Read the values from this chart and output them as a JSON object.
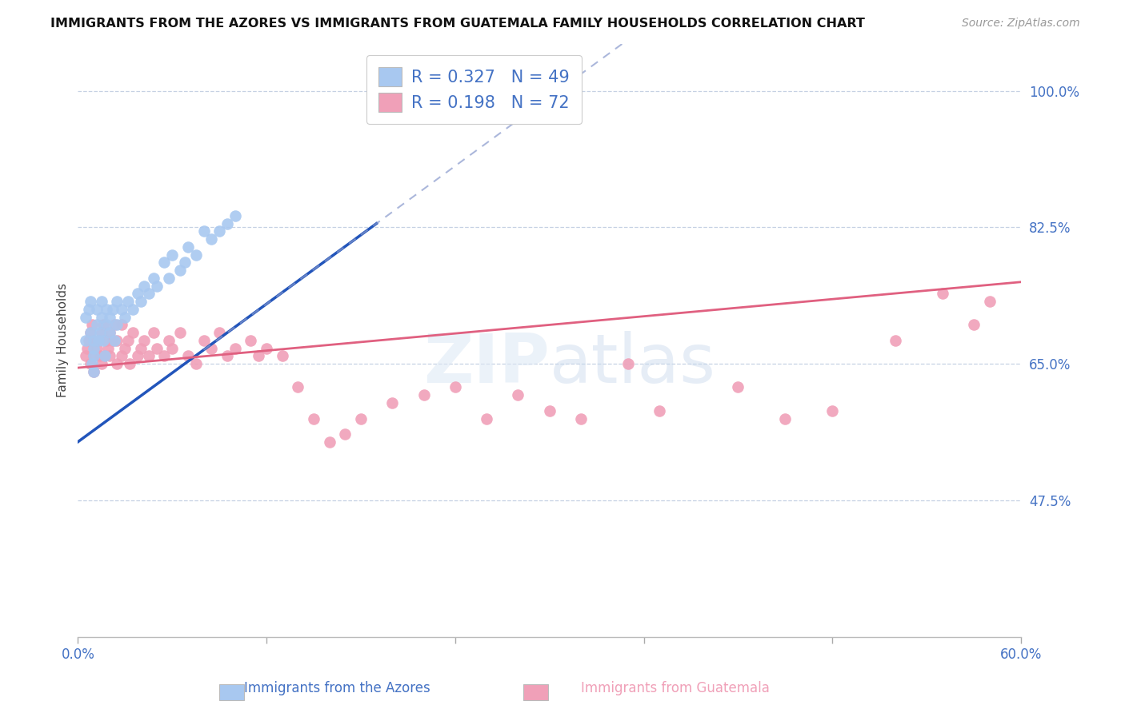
{
  "title": "IMMIGRANTS FROM THE AZORES VS IMMIGRANTS FROM GUATEMALA FAMILY HOUSEHOLDS CORRELATION CHART",
  "source": "Source: ZipAtlas.com",
  "xlabel_azores": "Immigrants from the Azores",
  "xlabel_guatemala": "Immigrants from Guatemala",
  "ylabel": "Family Households",
  "xlim": [
    0.0,
    0.6
  ],
  "ylim": [
    0.3,
    1.06
  ],
  "yticks": [
    0.475,
    0.65,
    0.825,
    1.0
  ],
  "ytick_labels": [
    "47.5%",
    "65.0%",
    "82.5%",
    "100.0%"
  ],
  "xtick_labels": [
    "0.0%",
    "60.0%"
  ],
  "R_azores": 0.327,
  "N_azores": 49,
  "R_guatemala": 0.198,
  "N_guatemala": 72,
  "blue_color": "#a8c8f0",
  "pink_color": "#f0a0b8",
  "blue_line_color": "#2255bb",
  "pink_line_color": "#e06080",
  "axis_label_color": "#4472c4",
  "grid_color": "#c0cce0",
  "background_color": "#ffffff",
  "azores_x": [
    0.005,
    0.005,
    0.007,
    0.008,
    0.008,
    0.009,
    0.01,
    0.01,
    0.01,
    0.01,
    0.012,
    0.012,
    0.013,
    0.014,
    0.015,
    0.015,
    0.016,
    0.017,
    0.018,
    0.018,
    0.02,
    0.02,
    0.022,
    0.023,
    0.025,
    0.025,
    0.028,
    0.03,
    0.032,
    0.035,
    0.038,
    0.04,
    0.042,
    0.045,
    0.048,
    0.05,
    0.055,
    0.058,
    0.06,
    0.065,
    0.068,
    0.07,
    0.075,
    0.08,
    0.085,
    0.09,
    0.095,
    0.1,
    0.22
  ],
  "azores_y": [
    0.68,
    0.71,
    0.72,
    0.69,
    0.73,
    0.65,
    0.66,
    0.67,
    0.68,
    0.64,
    0.7,
    0.72,
    0.68,
    0.69,
    0.71,
    0.73,
    0.68,
    0.66,
    0.7,
    0.72,
    0.69,
    0.71,
    0.72,
    0.68,
    0.73,
    0.7,
    0.72,
    0.71,
    0.73,
    0.72,
    0.74,
    0.73,
    0.75,
    0.74,
    0.76,
    0.75,
    0.78,
    0.76,
    0.79,
    0.77,
    0.78,
    0.8,
    0.79,
    0.82,
    0.81,
    0.82,
    0.83,
    0.84,
    1.01
  ],
  "guatemala_x": [
    0.005,
    0.006,
    0.007,
    0.008,
    0.008,
    0.009,
    0.01,
    0.01,
    0.01,
    0.012,
    0.013,
    0.014,
    0.015,
    0.015,
    0.016,
    0.017,
    0.018,
    0.019,
    0.02,
    0.02,
    0.022,
    0.023,
    0.025,
    0.025,
    0.028,
    0.028,
    0.03,
    0.032,
    0.033,
    0.035,
    0.038,
    0.04,
    0.042,
    0.045,
    0.048,
    0.05,
    0.055,
    0.058,
    0.06,
    0.065,
    0.07,
    0.075,
    0.08,
    0.085,
    0.09,
    0.095,
    0.1,
    0.11,
    0.115,
    0.12,
    0.13,
    0.14,
    0.15,
    0.16,
    0.17,
    0.18,
    0.2,
    0.22,
    0.24,
    0.26,
    0.28,
    0.3,
    0.32,
    0.35,
    0.37,
    0.42,
    0.45,
    0.48,
    0.52,
    0.55,
    0.57,
    0.58
  ],
  "guatemala_y": [
    0.66,
    0.67,
    0.68,
    0.65,
    0.69,
    0.7,
    0.64,
    0.66,
    0.68,
    0.67,
    0.68,
    0.66,
    0.69,
    0.65,
    0.7,
    0.66,
    0.68,
    0.67,
    0.66,
    0.69,
    0.68,
    0.7,
    0.65,
    0.68,
    0.66,
    0.7,
    0.67,
    0.68,
    0.65,
    0.69,
    0.66,
    0.67,
    0.68,
    0.66,
    0.69,
    0.67,
    0.66,
    0.68,
    0.67,
    0.69,
    0.66,
    0.65,
    0.68,
    0.67,
    0.69,
    0.66,
    0.67,
    0.68,
    0.66,
    0.67,
    0.66,
    0.62,
    0.58,
    0.55,
    0.56,
    0.58,
    0.6,
    0.61,
    0.62,
    0.58,
    0.61,
    0.59,
    0.58,
    0.65,
    0.59,
    0.62,
    0.58,
    0.59,
    0.68,
    0.74,
    0.7,
    0.73
  ]
}
